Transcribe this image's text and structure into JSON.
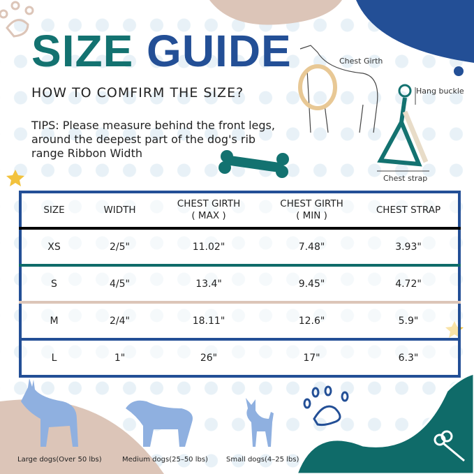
{
  "title": {
    "part1": "SIZE",
    "part2": "GUIDE"
  },
  "subtitle": "HOW TO COMFIRM THE SIZE?",
  "tips": "TIPS: Please measure behind the front legs, around the deepest part of the dog's rib range Ribbon Width",
  "diagram": {
    "chest_girth": "Chest Girth",
    "hang_buckle": "Hang buckle",
    "chest_strap": "Chest strap"
  },
  "table": {
    "headers": [
      "SIZE",
      "WIDTH",
      "CHEST GIRTH\n( MAX )",
      "CHEST GIRTH\n( MIN )",
      "CHEST STRAP"
    ],
    "rows": [
      [
        "XS",
        "2/5\"",
        "11.02\"",
        "7.48\"",
        "3.93\""
      ],
      [
        "S",
        "4/5\"",
        "13.4\"",
        "9.45\"",
        "4.72\""
      ],
      [
        "M",
        "2/4\"",
        "18.11\"",
        "12.6\"",
        "5.9\""
      ],
      [
        "L",
        "1\"",
        "26\"",
        "17\"",
        "6.3\""
      ]
    ]
  },
  "dogs": [
    {
      "label": "Large dogs(Over 50 lbs)"
    },
    {
      "label": "Medium dogs(25–50 lbs)"
    },
    {
      "label": "Small dogs(4–25 lbs)"
    }
  ],
  "colors": {
    "teal": "#137270",
    "blue": "#234f96",
    "beige": "#dcc5b8",
    "dog_blue": "#8fb0e0",
    "star": "#f2c23c"
  }
}
